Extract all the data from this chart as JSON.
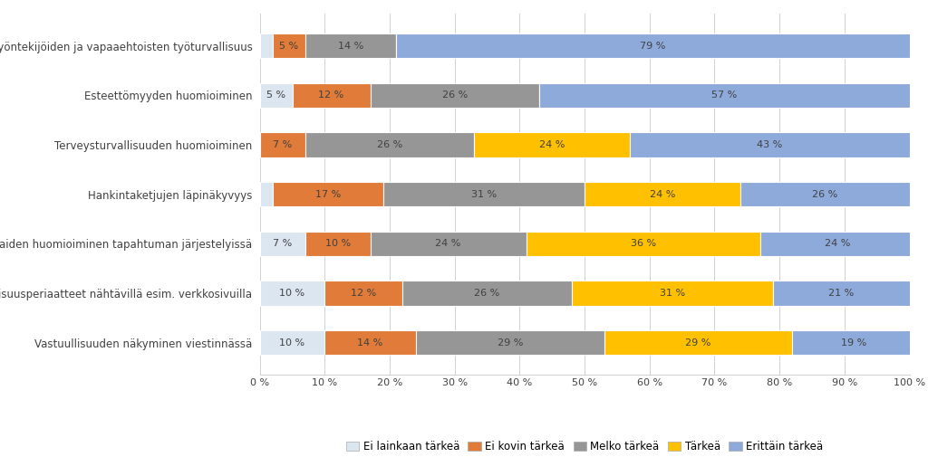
{
  "categories": [
    "Vastuullisuuden näkyminen viestinnässä",
    "Vastuullisuusperiaatteet nähtävillä esim. verkkosivuilla",
    "Alueen asukkaiden huomioiminen tapahtuman järjestelyissä",
    "Hankintaketjujen läpinäkyvyys",
    "Terveysturvallisuuden huomioiminen",
    "Esteettömyyden huomioiminen",
    "Työntekijöiden ja vapaaehtoisten työturvallisuus"
  ],
  "series": [
    {
      "name": "Ei lainkaan tärkeä",
      "color": "#dce6f1",
      "values": [
        10,
        10,
        7,
        2,
        0,
        5,
        2
      ]
    },
    {
      "name": "Ei kovin tärkeä",
      "color": "#e07b39",
      "values": [
        14,
        12,
        10,
        17,
        7,
        12,
        5
      ]
    },
    {
      "name": "Melko tärkeä",
      "color": "#969696",
      "values": [
        29,
        26,
        24,
        31,
        26,
        26,
        14
      ]
    },
    {
      "name": "Tärkeä",
      "color": "#ffc000",
      "values": [
        29,
        31,
        36,
        24,
        24,
        0,
        0
      ]
    },
    {
      "name": "Erittäin tärkeä",
      "color": "#8eaadb",
      "values": [
        19,
        21,
        24,
        26,
        43,
        57,
        79
      ]
    }
  ],
  "xlabel_ticks": [
    0,
    10,
    20,
    30,
    40,
    50,
    60,
    70,
    80,
    90,
    100
  ],
  "background_color": "#ffffff",
  "bar_height": 0.5,
  "figsize": [
    10.24,
    5.05
  ],
  "dpi": 100,
  "label_color": "#404040",
  "label_fontsize": 8.0,
  "ytick_fontsize": 8.5,
  "xtick_fontsize": 8.0
}
